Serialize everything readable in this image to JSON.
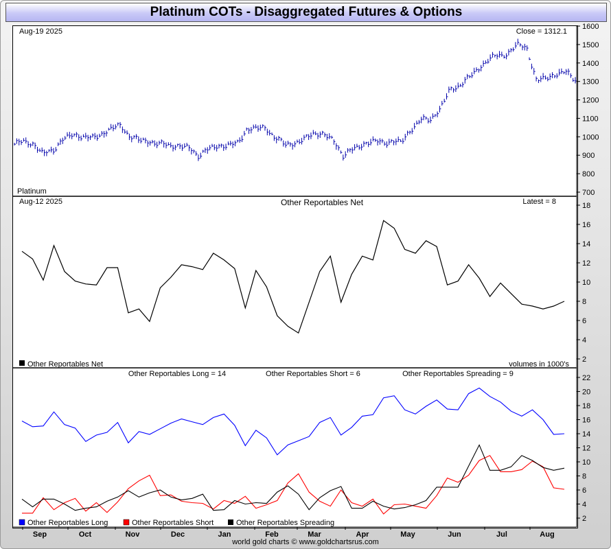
{
  "page": {
    "title": "Platinum COTs - Disaggregated Futures & Options",
    "footer": "world gold charts © www.goldchartsrus.com"
  },
  "x_axis": {
    "months": [
      "Sep",
      "Oct",
      "Nov",
      "Dec",
      "Jan",
      "Feb",
      "Mar",
      "Apr",
      "May",
      "Jun",
      "Jul",
      "Aug"
    ]
  },
  "chart_data": [
    {
      "type": "bar",
      "subtype": "ohlc-price",
      "top_left": "Aug-19  2025",
      "top_right": "Close = 1312.1",
      "bottom_left": "Platinum",
      "series_color": "#0000aa",
      "ylim": [
        700,
        1600
      ],
      "yticks": [
        700,
        800,
        900,
        1000,
        1100,
        1200,
        1300,
        1400,
        1500,
        1600
      ],
      "close_profile": [
        960,
        975,
        960,
        905,
        930,
        985,
        1010,
        1005,
        990,
        1015,
        1045,
        1060,
        1000,
        980,
        975,
        960,
        955,
        950,
        940,
        900,
        930,
        950,
        955,
        960,
        1040,
        1045,
        1050,
        990,
        960,
        965,
        985,
        1025,
        1010,
        980,
        900,
        930,
        960,
        975,
        970,
        975,
        970,
        1040,
        1090,
        1095,
        1150,
        1250,
        1280,
        1320,
        1370,
        1420,
        1440,
        1450,
        1500,
        1480,
        1300,
        1320,
        1340,
        1350,
        1312
      ],
      "grid": false
    },
    {
      "type": "line",
      "title": "Other Reportables Net",
      "top_left": "Aug-12  2025",
      "top_right": "Latest = 8",
      "legend_label": "Other Reportables Net",
      "units_note": "volumes in 1000's",
      "ylim": [
        1.5,
        18.5
      ],
      "yticks": [
        2,
        4,
        6,
        8,
        10,
        12,
        14,
        16,
        18
      ],
      "series": [
        {
          "name": "Other Reportables Net",
          "color": "#000000",
          "values": [
            13.2,
            12.4,
            10.2,
            13.8,
            11.1,
            10.1,
            9.8,
            9.7,
            11.5,
            11.5,
            6.8,
            7.2,
            5.9,
            9.4,
            10.5,
            11.8,
            11.6,
            11.3,
            13.0,
            12.3,
            11.4,
            7.3,
            11.2,
            9.5,
            6.5,
            5.4,
            4.7,
            7.9,
            11.1,
            12.7,
            7.9,
            10.8,
            12.7,
            12.3,
            16.4,
            15.6,
            13.4,
            13.0,
            14.3,
            13.7,
            9.7,
            10.1,
            11.8,
            10.4,
            8.5,
            9.9,
            8.8,
            7.7,
            7.5,
            7.2,
            7.5,
            8.0
          ]
        }
      ],
      "grid": false
    },
    {
      "type": "line",
      "top_labels": [
        "Other Reportables Long = 14",
        "Other Reportables Short = 6",
        "Other Reportables Spreading = 9"
      ],
      "ylim": [
        1,
        23
      ],
      "yticks": [
        2,
        4,
        6,
        8,
        10,
        12,
        14,
        16,
        18,
        20,
        22
      ],
      "series": [
        {
          "name": "Other Reportables Long",
          "color": "#0000ff",
          "values": [
            15.8,
            15.0,
            15.1,
            17.1,
            15.3,
            14.8,
            12.9,
            13.8,
            14.2,
            15.6,
            12.7,
            14.3,
            13.9,
            14.7,
            15.5,
            16.1,
            15.7,
            15.3,
            16.3,
            16.8,
            15.2,
            12.3,
            14.5,
            13.4,
            11.0,
            12.4,
            13.0,
            13.6,
            15.6,
            16.3,
            13.8,
            14.9,
            16.5,
            16.7,
            19.1,
            19.4,
            17.4,
            16.8,
            17.9,
            18.8,
            17.5,
            17.4,
            19.7,
            20.5,
            19.3,
            18.5,
            17.2,
            16.5,
            17.4,
            16.0,
            13.9,
            14.0
          ]
        },
        {
          "name": "Other Reportables Short",
          "color": "#ff0000",
          "values": [
            2.7,
            2.7,
            4.9,
            3.2,
            4.2,
            4.8,
            3.0,
            4.2,
            2.8,
            4.3,
            6.2,
            7.3,
            8.1,
            5.2,
            5.3,
            4.4,
            4.2,
            4.1,
            3.3,
            4.5,
            4.1,
            5.1,
            3.4,
            3.9,
            4.5,
            7.0,
            8.3,
            5.7,
            4.4,
            3.7,
            6.0,
            4.2,
            3.7,
            4.7,
            2.6,
            3.9,
            4.0,
            3.7,
            3.4,
            5.2,
            7.7,
            7.1,
            8.1,
            10.2,
            10.9,
            8.6,
            8.6,
            8.9,
            10.1,
            9.3,
            6.3,
            6.1
          ]
        },
        {
          "name": "Other Reportables Spreading",
          "color": "#000000",
          "values": [
            4.7,
            3.6,
            4.7,
            4.7,
            4.0,
            3.1,
            3.4,
            3.6,
            4.4,
            5.0,
            5.9,
            5.0,
            5.6,
            6.0,
            5.0,
            4.6,
            4.8,
            5.4,
            3.1,
            3.2,
            4.5,
            4.0,
            4.2,
            4.1,
            5.7,
            6.6,
            5.4,
            3.2,
            4.9,
            5.9,
            6.5,
            3.4,
            3.4,
            4.4,
            3.7,
            3.3,
            3.5,
            3.9,
            4.5,
            6.4,
            6.4,
            6.4,
            9.4,
            12.4,
            8.8,
            8.8,
            9.3,
            10.9,
            10.2,
            9.2,
            8.8,
            9.1
          ]
        }
      ],
      "grid": false
    }
  ]
}
